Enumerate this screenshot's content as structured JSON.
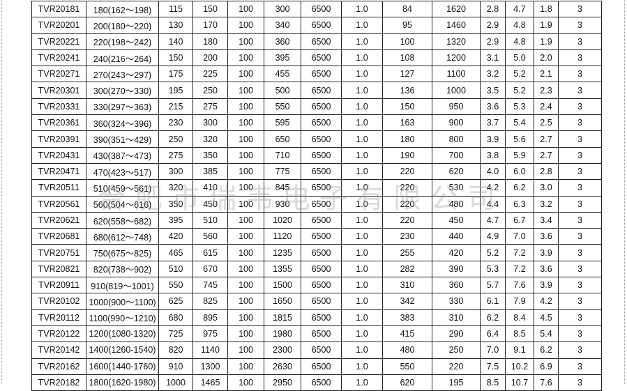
{
  "table": {
    "rows": [
      [
        "TVR20181",
        "180(162～198)",
        "115",
        "150",
        "100",
        "300",
        "6500",
        "1.0",
        "84",
        "1620",
        "2.8",
        "4.7",
        "1.8",
        "3"
      ],
      [
        "TVR20201",
        "200(180～220)",
        "130",
        "170",
        "100",
        "340",
        "6500",
        "1.0",
        "95",
        "1460",
        "2.9",
        "4.8",
        "1.9",
        "3"
      ],
      [
        "TVR20221",
        "220(198～242)",
        "140",
        "180",
        "100",
        "360",
        "6500",
        "1.0",
        "100",
        "1320",
        "2.9",
        "4.8",
        "1.9",
        "3"
      ],
      [
        "TVR20241",
        "240(216～264)",
        "150",
        "200",
        "100",
        "395",
        "6500",
        "1.0",
        "108",
        "1200",
        "3.1",
        "5.0",
        "2.0",
        "3"
      ],
      [
        "TVR20271",
        "270(243～297)",
        "175",
        "225",
        "100",
        "455",
        "6500",
        "1.0",
        "127",
        "1100",
        "3.2",
        "5.2",
        "2.1",
        "3"
      ],
      [
        "TVR20301",
        "300(270～330)",
        "195",
        "250",
        "100",
        "500",
        "6500",
        "1.0",
        "136",
        "1000",
        "3.5",
        "5.2",
        "2.3",
        "3"
      ],
      [
        "TVR20331",
        "330(297～363)",
        "215",
        "275",
        "100",
        "550",
        "6500",
        "1.0",
        "150",
        "950",
        "3.6",
        "5.3",
        "2.4",
        "3"
      ],
      [
        "TVR20361",
        "360(324～396)",
        "230",
        "300",
        "100",
        "595",
        "6500",
        "1.0",
        "163",
        "900",
        "3.7",
        "5.4",
        "2.5",
        "3"
      ],
      [
        "TVR20391",
        "390(351～429)",
        "250",
        "320",
        "100",
        "650",
        "6500",
        "1.0",
        "180",
        "800",
        "3.9",
        "5.6",
        "2.7",
        "3"
      ],
      [
        "TVR20431",
        "430(387～473)",
        "275",
        "350",
        "100",
        "710",
        "6500",
        "1.0",
        "190",
        "700",
        "3.8",
        "5.9",
        "2.7",
        "3"
      ],
      [
        "TVR20471",
        "470(423～517)",
        "300",
        "385",
        "100",
        "775",
        "6500",
        "1.0",
        "220",
        "620",
        "4.0",
        "6.0",
        "2.8",
        "3"
      ],
      [
        "TVR20511",
        "510(459～561)",
        "320",
        "410",
        "100",
        "845",
        "6500",
        "1.0",
        "220",
        "530",
        "4.2",
        "6.2",
        "3.0",
        "3"
      ],
      [
        "TVR20561",
        "560(504～616)",
        "350",
        "450",
        "100",
        "930",
        "6500",
        "1.0",
        "220",
        "480",
        "4.4",
        "6.3",
        "3.2",
        "3"
      ],
      [
        "TVR20621",
        "620(558～682)",
        "395",
        "510",
        "100",
        "1020",
        "6500",
        "1.0",
        "220",
        "450",
        "4.7",
        "6.7",
        "3.4",
        "3"
      ],
      [
        "TVR20681",
        "680(612～748)",
        "420",
        "560",
        "100",
        "1120",
        "6500",
        "1.0",
        "230",
        "440",
        "4.9",
        "7.0",
        "3.6",
        "3"
      ],
      [
        "TVR20751",
        "750(675～825)",
        "465",
        "615",
        "100",
        "1235",
        "6500",
        "1.0",
        "255",
        "420",
        "5.2",
        "7.2",
        "3.9",
        "3"
      ],
      [
        "TVR20821",
        "820(738～902)",
        "510",
        "670",
        "100",
        "1355",
        "6500",
        "1.0",
        "282",
        "390",
        "5.3",
        "7.2",
        "3.6",
        "3"
      ],
      [
        "TVR20911",
        "910(819～1001)",
        "550",
        "745",
        "100",
        "1500",
        "6500",
        "1.0",
        "310",
        "360",
        "5.7",
        "7.6",
        "3.9",
        "3"
      ],
      [
        "TVR20102",
        "1000(900～1100)",
        "625",
        "825",
        "100",
        "1650",
        "6500",
        "1.0",
        "342",
        "330",
        "6.1",
        "7.9",
        "4.2",
        "3"
      ],
      [
        "TVR20112",
        "1100(990～1210)",
        "680",
        "895",
        "100",
        "1815",
        "6500",
        "1.0",
        "383",
        "310",
        "6.2",
        "8.4",
        "4.5",
        "3"
      ],
      [
        "TVR20122",
        "1200(1080-1320)",
        "725",
        "975",
        "100",
        "1980",
        "6500",
        "1.0",
        "415",
        "290",
        "6.4",
        "8.5",
        "5.4",
        "3"
      ],
      [
        "TVR20142",
        "1400(1260-1540)",
        "820",
        "1140",
        "100",
        "2300",
        "6500",
        "1.0",
        "480",
        "250",
        "7.0",
        "9.1",
        "6.2",
        "3"
      ],
      [
        "TVR20162",
        "1600(1440-1760)",
        "910",
        "1300",
        "100",
        "2630",
        "6500",
        "1.0",
        "550",
        "220",
        "7.5",
        "10.2",
        "6.9",
        "3"
      ],
      [
        "TVR20182",
        "1800(1620-1980)",
        "1000",
        "1465",
        "100",
        "2950",
        "6500",
        "1.0",
        "620",
        "195",
        "8.5",
        "10.7",
        "7.6",
        "3"
      ]
    ]
  },
  "watermark": "合肥市瑞韦电子有限公司"
}
